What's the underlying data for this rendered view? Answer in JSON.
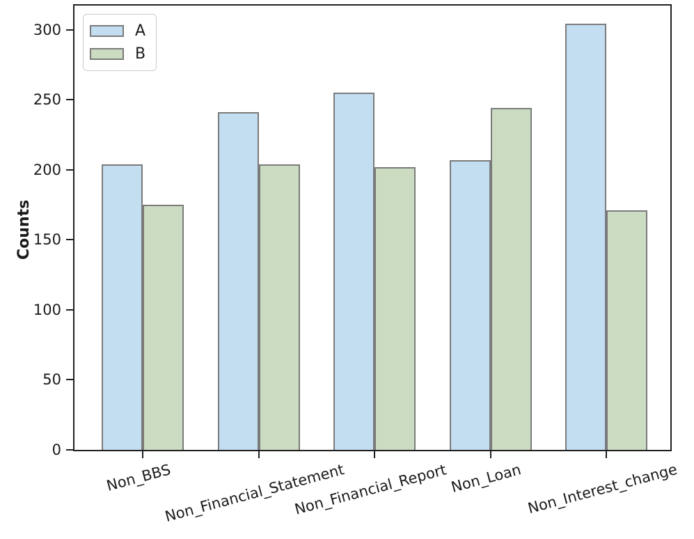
{
  "chart_data": {
    "type": "bar",
    "title": "",
    "xlabel": "",
    "ylabel": "Counts",
    "categories": [
      "Non_BBS",
      "Non_Financial_Statement",
      "Non_Financial_Report",
      "Non_Loan",
      "Non_Interest_change"
    ],
    "series": [
      {
        "name": "A",
        "color": "#c4def1",
        "values": [
          204,
          241,
          255,
          207,
          304
        ]
      },
      {
        "name": "B",
        "color": "#ccdcc2",
        "values": [
          175,
          204,
          202,
          244,
          171
        ]
      }
    ],
    "yticks": [
      0,
      50,
      100,
      150,
      200,
      250,
      300
    ],
    "ylim": [
      0,
      319
    ],
    "grid": false,
    "legend_position": "upper left",
    "x_tick_rotation_deg": 15,
    "bar_edge_color": "#7a7a7a",
    "axis_color": "#1f1f1f"
  }
}
